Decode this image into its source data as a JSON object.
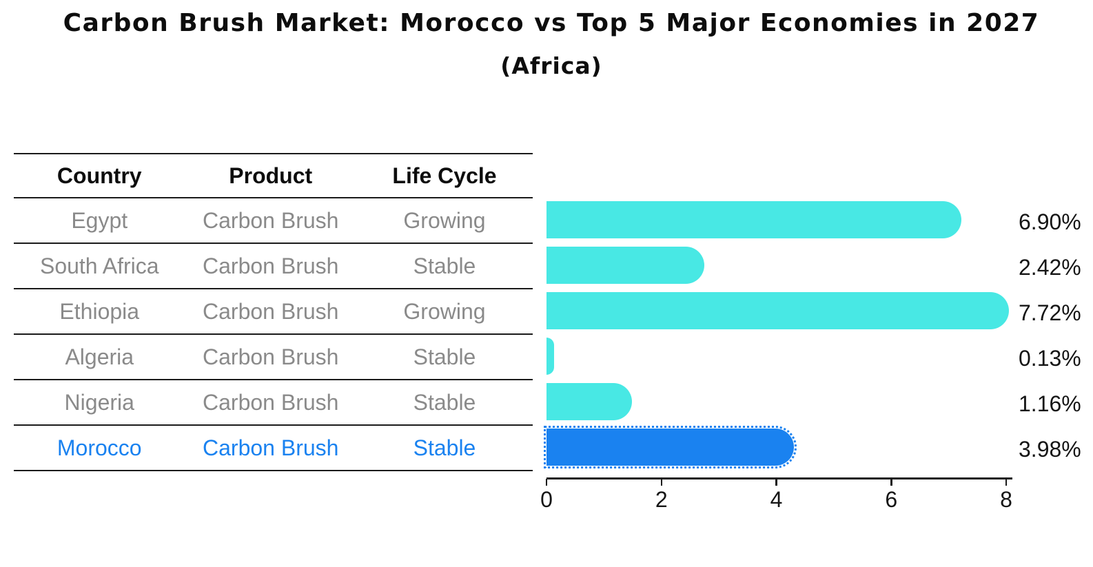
{
  "title": "Carbon Brush Market: Morocco vs Top 5 Major Economies in 2027",
  "subtitle": "(Africa)",
  "table": {
    "headers": [
      "Country",
      "Product",
      "Life Cycle"
    ],
    "rows": [
      {
        "country": "Egypt",
        "product": "Carbon Brush",
        "life_cycle": "Growing"
      },
      {
        "country": "South Africa",
        "product": "Carbon Brush",
        "life_cycle": "Stable"
      },
      {
        "country": "Ethiopia",
        "product": "Carbon Brush",
        "life_cycle": "Growing"
      },
      {
        "country": "Algeria",
        "product": "Carbon Brush",
        "life_cycle": "Stable"
      },
      {
        "country": "Nigeria",
        "product": "Carbon Brush",
        "life_cycle": "Stable"
      },
      {
        "country": "Morocco",
        "product": "Carbon Brush",
        "life_cycle": "Stable"
      }
    ],
    "highlight_row": "Morocco",
    "text_color": "#8a8a8a",
    "header_color": "#0d0d0d"
  },
  "chart_data": {
    "type": "bar",
    "orientation": "horizontal",
    "title": "Carbon Brush Market: Morocco vs Top 5 Major Economies in 2027",
    "subtitle": "(Africa)",
    "categories": [
      "Egypt",
      "South Africa",
      "Ethiopia",
      "Algeria",
      "Nigeria",
      "Morocco"
    ],
    "values": [
      6.9,
      2.42,
      7.72,
      0.13,
      1.16,
      3.98
    ],
    "value_labels": [
      "6.90%",
      "2.42%",
      "7.72%",
      "0.13%",
      "1.16%",
      "3.98%"
    ],
    "xlim": [
      0,
      8
    ],
    "x_ticks": [
      "0",
      "2",
      "4",
      "6",
      "8"
    ],
    "grid": false,
    "legend": false,
    "bar_color": "#48E8E4",
    "highlight_color": "#1A82F0",
    "highlight_index": 5,
    "axis_color": "#1a1a1a"
  }
}
